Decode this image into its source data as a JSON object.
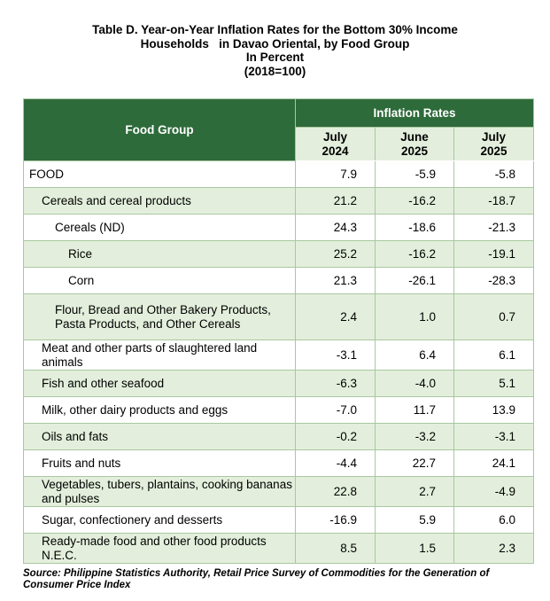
{
  "title": {
    "line1": "Table D. Year-on-Year Inflation Rates for the Bottom 30% Income",
    "line2": "Households   in Davao Oriental, by Food Group",
    "line3": "In Percent",
    "line4": "(2018=100)"
  },
  "table": {
    "header_group": "Food Group",
    "header_rates": "Inflation Rates",
    "columns": [
      {
        "line1": "July",
        "line2": "2024"
      },
      {
        "line1": "June",
        "line2": "2025"
      },
      {
        "line1": "July",
        "line2": "2025"
      }
    ],
    "rows": [
      {
        "name": "FOOD",
        "v": [
          "7.9",
          "-5.9",
          "-5.8"
        ]
      },
      {
        "name": "Cereals and cereal products",
        "v": [
          "21.2",
          "-16.2",
          "-18.7"
        ]
      },
      {
        "name": "Cereals (ND)",
        "v": [
          "24.3",
          "-18.6",
          "-21.3"
        ]
      },
      {
        "name": "Rice",
        "v": [
          "25.2",
          "-16.2",
          "-19.1"
        ]
      },
      {
        "name": "Corn",
        "v": [
          "21.3",
          "-26.1",
          "-28.3"
        ]
      },
      {
        "name": "Flour, Bread and Other Bakery Products, Pasta Products, and Other Cereals",
        "v": [
          "2.4",
          "1.0",
          "0.7"
        ]
      },
      {
        "name": "Meat and other parts of slaughtered land animals",
        "v": [
          "-3.1",
          "6.4",
          "6.1"
        ]
      },
      {
        "name": "Fish and other seafood",
        "v": [
          "-6.3",
          "-4.0",
          "5.1"
        ]
      },
      {
        "name": "Milk, other dairy products and eggs",
        "v": [
          "-7.0",
          "11.7",
          "13.9"
        ]
      },
      {
        "name": "Oils and fats",
        "v": [
          "-0.2",
          "-3.2",
          "-3.1"
        ]
      },
      {
        "name": "Fruits and nuts",
        "v": [
          "-4.4",
          "22.7",
          "24.1"
        ]
      },
      {
        "name": "Vegetables, tubers, plantains, cooking bananas and pulses",
        "v": [
          "22.8",
          "2.7",
          "-4.9"
        ]
      },
      {
        "name": "Sugar, confectionery and desserts",
        "v": [
          "-16.9",
          "5.9",
          "6.0"
        ]
      },
      {
        "name": "Ready-made food and other food products N.E.C.",
        "v": [
          "8.5",
          "1.5",
          "2.3"
        ]
      }
    ]
  },
  "source": "Source: Philippine Statistics Authority, Retail Price Survey of Commodities for the Generation of Consumer Price Index",
  "colors": {
    "header_bg": "#2e6b3a",
    "shade_bg": "#e3efdc",
    "border": "#a9c7a0"
  }
}
